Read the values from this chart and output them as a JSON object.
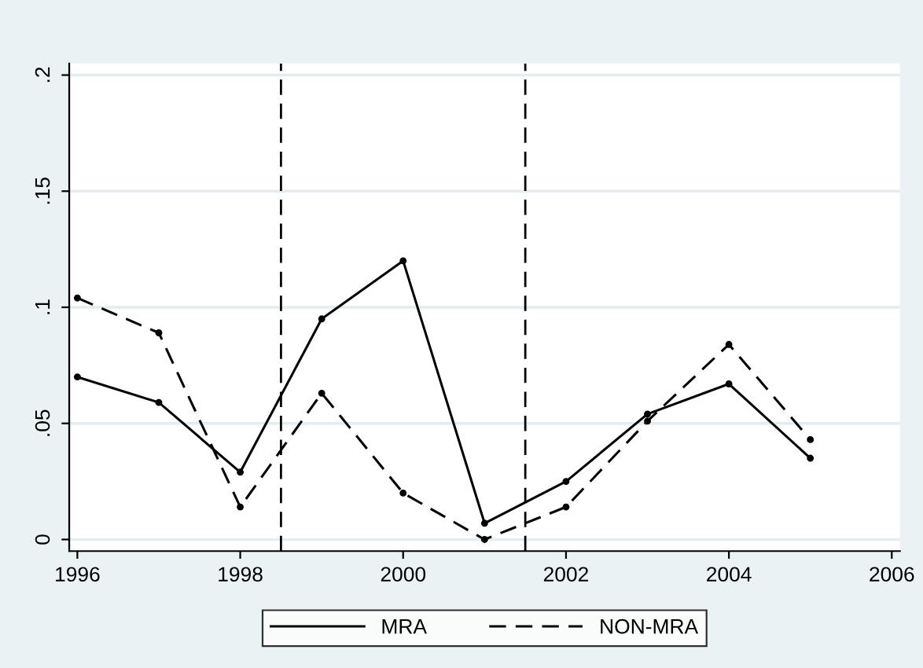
{
  "chart_data": {
    "type": "line",
    "x": [
      1996,
      1997,
      1998,
      1999,
      2000,
      2001,
      2002,
      2003,
      2004,
      2005
    ],
    "series": [
      {
        "name": "MRA",
        "color": "#000000",
        "line_style": "solid",
        "values": [
          0.07,
          0.059,
          0.029,
          0.095,
          0.12,
          0.007,
          0.025,
          0.054,
          0.067,
          0.035
        ]
      },
      {
        "name": "NON-MRA",
        "color": "#000000",
        "line_style": "dashed",
        "values": [
          0.104,
          0.089,
          0.014,
          0.063,
          0.02,
          0.0,
          0.014,
          0.051,
          0.084,
          0.043
        ]
      }
    ],
    "xlim": [
      1995.9,
      2006.1
    ],
    "xticks": [
      1996,
      1998,
      2000,
      2002,
      2004,
      2006
    ],
    "ylim": [
      -0.005,
      0.205
    ],
    "yticks": [
      {
        "value": 0,
        "label": "0"
      },
      {
        "value": 0.05,
        "label": ".05"
      },
      {
        "value": 0.1,
        "label": ".1"
      },
      {
        "value": 0.15,
        "label": ".15"
      },
      {
        "value": 0.2,
        "label": ".2"
      }
    ],
    "ref_lines": [
      {
        "axis": "x",
        "value": 1998.5,
        "line_style": "dashed",
        "color": "#000000"
      },
      {
        "axis": "x",
        "value": 2001.5,
        "line_style": "dashed",
        "color": "#000000"
      }
    ],
    "grid": "y",
    "legend": "bottom",
    "marker": "circle"
  }
}
